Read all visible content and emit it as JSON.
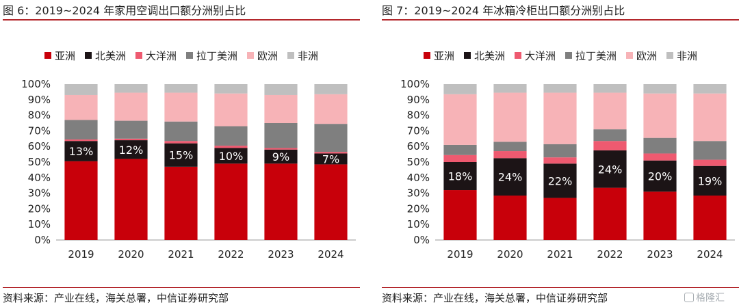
{
  "chart_data": [
    {
      "type": "bar",
      "stacked": true,
      "title": "图 6：2019~2024 年家用空调出口额分洲别占比",
      "categories": [
        "2019",
        "2020",
        "2021",
        "2022",
        "2023",
        "2024"
      ],
      "series": [
        {
          "name": "亚洲",
          "color": "#c8000a",
          "values": [
            50.5,
            52,
            47,
            49,
            49,
            48.5
          ]
        },
        {
          "name": "北美洲",
          "color": "#1c1416",
          "values": [
            13,
            12,
            15,
            10,
            9,
            7
          ]
        },
        {
          "name": "大洋洲",
          "color": "#ee5a70",
          "values": [
            1,
            1,
            1.5,
            1.5,
            1,
            1
          ]
        },
        {
          "name": "拉丁美洲",
          "color": "#7f7f7f",
          "values": [
            12.5,
            11.5,
            12.5,
            12.5,
            16,
            18
          ]
        },
        {
          "name": "欧洲",
          "color": "#f7b3b7",
          "values": [
            16,
            18,
            18.5,
            21,
            18,
            19
          ]
        },
        {
          "name": "非洲",
          "color": "#bfbfbf",
          "values": [
            7,
            5.5,
            5.5,
            6,
            7,
            6.5
          ]
        }
      ],
      "data_labels": {
        "series": "北美洲",
        "labels": [
          "13%",
          "12%",
          "15%",
          "10%",
          "9%",
          "7%"
        ]
      },
      "yticks": [
        "0%",
        "10%",
        "20%",
        "30%",
        "40%",
        "50%",
        "60%",
        "70%",
        "80%",
        "90%",
        "100%"
      ],
      "ylim": [
        0,
        100
      ],
      "grid": false,
      "legend": "top-center"
    },
    {
      "type": "bar",
      "stacked": true,
      "title": "图 7：2019~2024 年冰箱冷柜出口额分洲别占比",
      "categories": [
        "2019",
        "2020",
        "2021",
        "2022",
        "2023",
        "2024"
      ],
      "series": [
        {
          "name": "亚洲",
          "color": "#c8000a",
          "values": [
            32,
            28.5,
            27,
            33.5,
            31,
            28.5
          ]
        },
        {
          "name": "北美洲",
          "color": "#1c1416",
          "values": [
            18,
            24,
            22,
            24,
            20,
            19
          ]
        },
        {
          "name": "大洋洲",
          "color": "#ee5a70",
          "values": [
            4.5,
            4.5,
            4,
            6,
            4.5,
            4
          ]
        },
        {
          "name": "拉丁美洲",
          "color": "#7f7f7f",
          "values": [
            6.5,
            6,
            8.5,
            7.5,
            10,
            12
          ]
        },
        {
          "name": "欧洲",
          "color": "#f7b3b7",
          "values": [
            32.5,
            31.5,
            33,
            23.5,
            28.5,
            30.5
          ]
        },
        {
          "name": "非洲",
          "color": "#bfbfbf",
          "values": [
            6.5,
            5.5,
            5.5,
            5.5,
            6,
            6
          ]
        }
      ],
      "data_labels": {
        "series": "北美洲",
        "labels": [
          "18%",
          "24%",
          "22%",
          "24%",
          "20%",
          "19%"
        ]
      },
      "yticks": [
        "0%",
        "10%",
        "20%",
        "30%",
        "40%",
        "50%",
        "60%",
        "70%",
        "80%",
        "90%",
        "100%"
      ],
      "ylim": [
        0,
        100
      ],
      "grid": false,
      "legend": "top-center"
    }
  ],
  "sources": [
    "资料来源：产业在线，海关总署，中信证券研究部",
    "资料来源：产业在线，海关总署，中信证券研究部"
  ],
  "watermark": {
    "text": "格隆汇"
  }
}
